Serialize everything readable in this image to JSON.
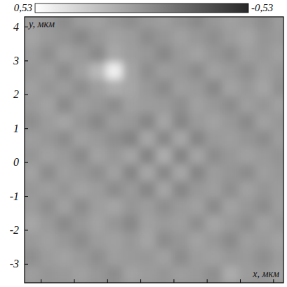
{
  "chart_data": {
    "type": "heatmap",
    "xlabel": "x, мкм",
    "ylabel": "y, мкм",
    "xlim": [
      -3.5,
      4.3
    ],
    "ylim": [
      -3.55,
      4.3
    ],
    "xticks": [
      -3,
      -2,
      -1,
      0,
      1,
      2,
      3,
      4
    ],
    "yticks": [
      4,
      3,
      2,
      1,
      0,
      -1,
      -2,
      -3
    ],
    "tick_labels": "y",
    "x": [
      -3.3,
      -2.8,
      -2.3,
      -1.8,
      -1.3,
      -0.8,
      -0.3,
      0.2,
      0.7,
      1.2,
      1.7,
      2.2,
      2.7,
      3.2,
      3.7,
      4.2
    ],
    "y": [
      4.2,
      3.7,
      3.2,
      2.7,
      2.2,
      1.7,
      1.2,
      0.7,
      0.2,
      -0.3,
      -0.8,
      -1.3,
      -1.8,
      -2.3,
      -2.8,
      -3.3
    ],
    "z": [
      [
        0.05,
        0.02,
        -0.03,
        0.04,
        0.06,
        0.01,
        -0.02,
        0.03,
        0.05,
        0.0,
        -0.04,
        0.02,
        0.06,
        0.03,
        -0.02,
        0.04
      ],
      [
        0.08,
        0.03,
        0.0,
        -0.05,
        0.02,
        0.07,
        0.04,
        -0.03,
        0.01,
        0.06,
        0.02,
        -0.02,
        0.04,
        0.08,
        0.01,
        0.03
      ],
      [
        0.04,
        -0.02,
        0.06,
        0.03,
        -0.04,
        0.1,
        0.05,
        0.02,
        -0.05,
        0.03,
        0.07,
        0.01,
        -0.03,
        0.05,
        0.02,
        0.06
      ],
      [
        0.02,
        0.05,
        -0.03,
        0.06,
        0.18,
        0.45,
        0.08,
        -0.02,
        0.04,
        0.02,
        -0.03,
        0.06,
        0.03,
        -0.02,
        0.05,
        0.01
      ],
      [
        0.06,
        0.01,
        0.04,
        -0.02,
        0.05,
        0.12,
        0.09,
        0.02,
        -0.04,
        0.05,
        0.03,
        -0.05,
        0.07,
        0.02,
        0.08,
        -0.01
      ],
      [
        0.03,
        0.07,
        -0.04,
        0.05,
        0.02,
        -0.03,
        0.06,
        0.04,
        0.03,
        -0.02,
        0.06,
        0.02,
        -0.03,
        0.05,
        0.01,
        0.06
      ],
      [
        -0.02,
        0.04,
        0.08,
        0.01,
        -0.05,
        0.04,
        0.02,
        -0.06,
        0.08,
        -0.06,
        0.03,
        0.07,
        0.02,
        -0.04,
        0.06,
        0.02
      ],
      [
        0.05,
        0.02,
        -0.03,
        0.06,
        0.03,
        -0.02,
        -0.07,
        0.09,
        -0.05,
        0.09,
        -0.06,
        0.03,
        0.05,
        0.01,
        -0.03,
        0.04
      ],
      [
        0.01,
        0.06,
        0.03,
        -0.04,
        0.07,
        0.02,
        0.08,
        -0.07,
        0.12,
        -0.07,
        0.08,
        -0.03,
        0.02,
        0.06,
        0.03,
        0.0
      ],
      [
        0.07,
        -0.03,
        0.05,
        0.02,
        -0.02,
        0.06,
        -0.06,
        0.09,
        -0.05,
        0.09,
        -0.06,
        0.04,
        0.01,
        -0.03,
        0.05,
        0.02
      ],
      [
        0.02,
        0.05,
        0.01,
        0.07,
        0.04,
        -0.03,
        0.03,
        -0.06,
        0.08,
        -0.06,
        0.02,
        0.05,
        -0.02,
        0.06,
        0.01,
        0.04
      ],
      [
        0.04,
        -0.02,
        0.06,
        -0.03,
        0.05,
        0.08,
        0.01,
        0.04,
        -0.02,
        0.03,
        0.06,
        -0.04,
        0.07,
        0.02,
        -0.03,
        0.05
      ],
      [
        0.09,
        0.03,
        -0.04,
        0.02,
        0.07,
        0.01,
        -0.05,
        0.06,
        0.03,
        0.05,
        -0.02,
        0.08,
        0.03,
        -0.02,
        0.06,
        0.01
      ],
      [
        0.03,
        0.06,
        0.02,
        -0.03,
        0.04,
        0.06,
        0.02,
        0.08,
        -0.03,
        0.01,
        0.07,
        0.02,
        -0.04,
        0.05,
        0.03,
        0.07
      ],
      [
        -0.02,
        0.04,
        0.07,
        0.03,
        -0.02,
        0.05,
        0.03,
        0.02,
        0.06,
        -0.03,
        0.04,
        0.06,
        0.02,
        0.03,
        -0.02,
        0.04
      ],
      [
        0.05,
        0.01,
        0.03,
        0.06,
        0.02,
        -0.03,
        0.07,
        0.04,
        0.01,
        0.05,
        0.03,
        -0.02,
        0.12,
        0.04,
        0.02,
        0.06
      ]
    ],
    "colorbar": {
      "range": [
        0.53,
        -0.53
      ],
      "ticks": [
        {
          "value": 0.53,
          "label": "0,53"
        },
        {
          "value": -0.53,
          "label": "-0,53"
        }
      ]
    }
  }
}
